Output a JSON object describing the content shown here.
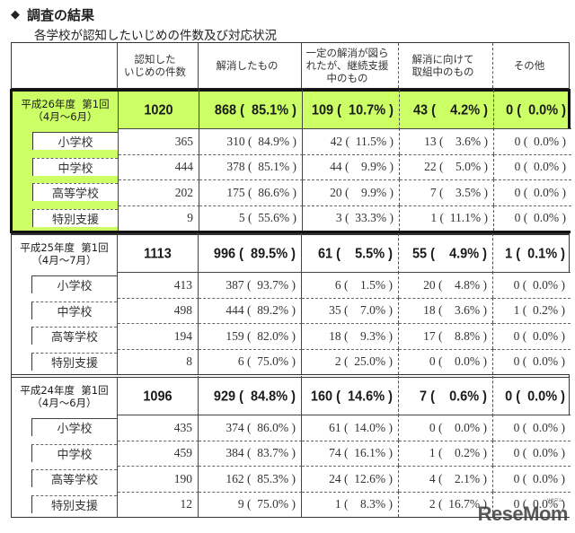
{
  "heading": {
    "icon": "diamond-bullet-icon",
    "title": "調査の結果"
  },
  "subheading": "各学校が認知したいじめの件数及び対応状況",
  "table": {
    "columns": [
      "",
      "認知した\nいじめの件数",
      "解消したもの",
      "一定の解消が図ら\nれたが、継続支援\n中のもの",
      "解消に向けて\n取組中のもの",
      "その他"
    ],
    "groups": [
      {
        "label_line1": "平成26年度  第1回",
        "label_line2": "（4月～6月）",
        "highlighted": true,
        "highlight_color": "#ccff66",
        "total": "1020",
        "resolved": "868 (  85.1% )",
        "continuing": "109 (  10.7% )",
        "in_progress": "43 (    4.2% )",
        "other": "0 (  0.0% )",
        "rows": [
          {
            "school": "小学校",
            "total": "365",
            "resolved": "310 (  84.9% )",
            "continuing": "42 (  11.5% )",
            "in_progress": "13 (    3.6% )",
            "other": "0 (  0.0% )"
          },
          {
            "school": "中学校",
            "total": "444",
            "resolved": "378 (  85.1% )",
            "continuing": "44 (    9.9% )",
            "in_progress": "22 (    5.0% )",
            "other": "0 (  0.0% )"
          },
          {
            "school": "高等学校",
            "total": "202",
            "resolved": "175 (  86.6% )",
            "continuing": "20 (    9.9% )",
            "in_progress": "7 (    3.5% )",
            "other": "0 (  0.0% )"
          },
          {
            "school": "特別支援",
            "total": "9",
            "resolved": "5 (  55.6% )",
            "continuing": "3 (  33.3% )",
            "in_progress": "1 (  11.1% )",
            "other": "0 (  0.0% )"
          }
        ]
      },
      {
        "label_line1": "平成25年度  第1回",
        "label_line2": "（4月～7月）",
        "highlighted": false,
        "total": "1113",
        "resolved": "996 (  89.5% )",
        "continuing": "61 (    5.5% )",
        "in_progress": "55 (    4.9% )",
        "other": "1 (  0.1% )",
        "rows": [
          {
            "school": "小学校",
            "total": "413",
            "resolved": "387 (  93.7% )",
            "continuing": "6 (    1.5% )",
            "in_progress": "20 (    4.8% )",
            "other": "0 (  0.0% )"
          },
          {
            "school": "中学校",
            "total": "498",
            "resolved": "444 (  89.2% )",
            "continuing": "35 (    7.0% )",
            "in_progress": "18 (    3.6% )",
            "other": "1 (  0.2% )"
          },
          {
            "school": "高等学校",
            "total": "194",
            "resolved": "159 (  82.0% )",
            "continuing": "18 (    9.3% )",
            "in_progress": "17 (    8.8% )",
            "other": "0 (  0.0% )"
          },
          {
            "school": "特別支援",
            "total": "8",
            "resolved": "6 (  75.0% )",
            "continuing": "2 (  25.0% )",
            "in_progress": "0 (    0.0% )",
            "other": "0 (  0.0% )"
          }
        ]
      },
      {
        "label_line1": "平成24年度  第1回",
        "label_line2": "（4月～6月）",
        "highlighted": false,
        "total": "1096",
        "resolved": "929 (  84.8% )",
        "continuing": "160 (  14.6% )",
        "in_progress": "7 (    0.6% )",
        "other": "0 (  0.0% )",
        "rows": [
          {
            "school": "小学校",
            "total": "435",
            "resolved": "374 (  86.0% )",
            "continuing": "61 (  14.0% )",
            "in_progress": "0 (    0.0% )",
            "other": "0 (  0.0% )"
          },
          {
            "school": "中学校",
            "total": "459",
            "resolved": "384 (  83.7% )",
            "continuing": "74 (  16.1% )",
            "in_progress": "1 (    0.2% )",
            "other": "0 (  0.0% )"
          },
          {
            "school": "高等学校",
            "total": "190",
            "resolved": "162 (  85.3% )",
            "continuing": "24 (  12.6% )",
            "in_progress": "4 (    2.1% )",
            "other": "0 (  0.0% )"
          },
          {
            "school": "特別支援",
            "total": "12",
            "resolved": "9 (  75.0% )",
            "continuing": "1 (    8.3% )",
            "in_progress": "2 (  16.7% )",
            "other": "0 (  0.0% )"
          }
        ]
      }
    ]
  },
  "watermark": {
    "text": "ReseMom",
    "small": "リセマム"
  }
}
